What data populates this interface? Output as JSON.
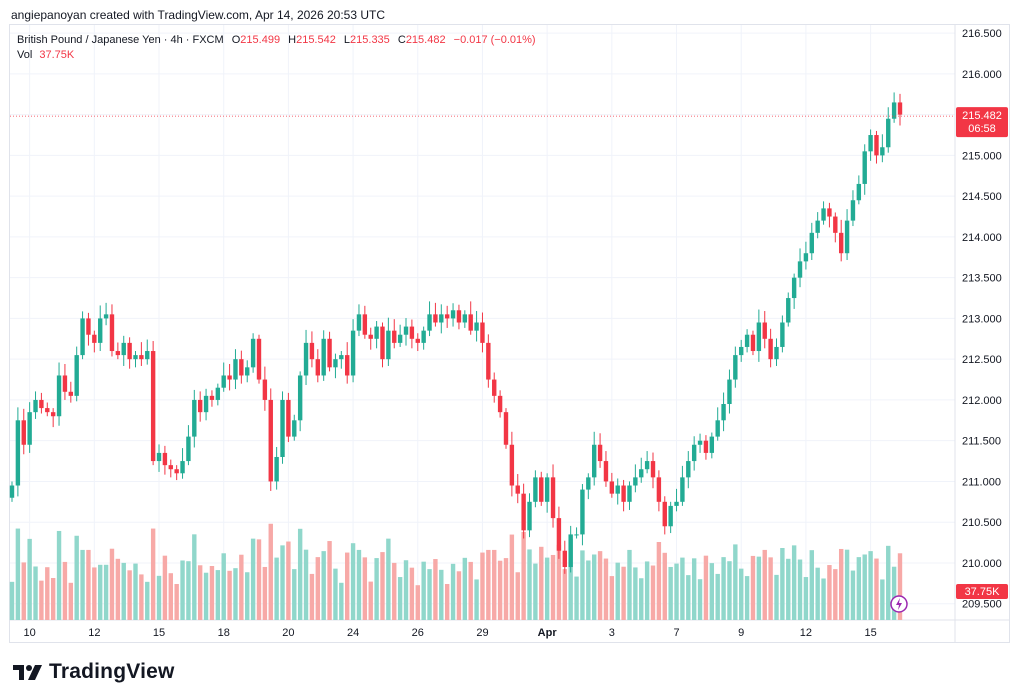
{
  "header": {
    "credit": "angiepanoyan created with TradingView.com, Apr 14, 2026 20:53 UTC"
  },
  "legend": {
    "symbol": "British Pound / Japanese Yen · 4h · FXCM",
    "open_label": "O",
    "open": "215.499",
    "high_label": "H",
    "high": "215.542",
    "low_label": "L",
    "low": "215.335",
    "close_label": "C",
    "close": "215.482",
    "change": "−0.017 (−0.01%)",
    "vol_label": "Vol",
    "vol": "37.75K"
  },
  "price_tag": {
    "price": "215.482",
    "countdown": "06:58"
  },
  "volume_tag": "37.75K",
  "brand": {
    "name": "TradingView"
  },
  "colors": {
    "up": "#22ab94",
    "down": "#f23645",
    "up_vol": "#90d7cb",
    "down_vol": "#f7a9a7",
    "grid": "#f0f3fa",
    "text": "#131722"
  },
  "chart_data": {
    "type": "candlestick",
    "title": "British Pound / Japanese Yen · 4h · FXCM",
    "y_ticks": [
      "216.500",
      "216.000",
      "215.500",
      "215.000",
      "214.500",
      "214.000",
      "213.500",
      "213.000",
      "212.500",
      "212.000",
      "211.500",
      "211.000",
      "210.500",
      "210.000",
      "209.500"
    ],
    "ylim": [
      209.3,
      216.6
    ],
    "x_ticks": [
      {
        "label": "10",
        "index": 3
      },
      {
        "label": "12",
        "index": 14
      },
      {
        "label": "15",
        "index": 25
      },
      {
        "label": "18",
        "index": 36
      },
      {
        "label": "20",
        "index": 47
      },
      {
        "label": "24",
        "index": 58
      },
      {
        "label": "26",
        "index": 69
      },
      {
        "label": "29",
        "index": 80
      },
      {
        "label": "Apr",
        "index": 91,
        "bold": true
      },
      {
        "label": "3",
        "index": 102
      },
      {
        "label": "7",
        "index": 113
      },
      {
        "label": "9",
        "index": 124
      },
      {
        "label": "12",
        "index": 135
      },
      {
        "label": "15",
        "index": 146
      }
    ],
    "closes": [
      210.95,
      211.75,
      211.45,
      211.85,
      212.0,
      211.9,
      211.85,
      211.8,
      212.3,
      212.1,
      212.05,
      212.55,
      213.0,
      212.8,
      212.7,
      213.0,
      213.05,
      212.6,
      212.55,
      212.7,
      212.5,
      212.55,
      212.5,
      212.6,
      211.25,
      211.35,
      211.2,
      211.15,
      211.1,
      211.25,
      211.55,
      212.0,
      211.85,
      212.05,
      212.0,
      212.15,
      212.3,
      212.25,
      212.5,
      212.3,
      212.4,
      212.75,
      212.25,
      212.0,
      211.0,
      211.3,
      212.0,
      211.55,
      211.75,
      212.3,
      212.7,
      212.5,
      212.3,
      212.75,
      212.4,
      212.5,
      212.55,
      212.3,
      212.85,
      213.05,
      212.8,
      212.75,
      212.9,
      212.5,
      212.85,
      212.7,
      212.8,
      212.9,
      212.75,
      212.7,
      212.85,
      213.05,
      212.95,
      213.05,
      213.0,
      213.1,
      212.95,
      213.05,
      212.85,
      212.95,
      212.7,
      212.25,
      212.05,
      211.85,
      211.45,
      210.95,
      210.85,
      210.4,
      210.75,
      211.05,
      210.75,
      211.05,
      210.55,
      210.15,
      209.95,
      210.35,
      210.35,
      210.9,
      211.05,
      211.45,
      211.25,
      211.0,
      210.85,
      210.95,
      210.75,
      210.95,
      211.05,
      211.15,
      211.25,
      211.05,
      210.75,
      210.45,
      210.7,
      210.75,
      211.05,
      211.25,
      211.45,
      211.5,
      211.35,
      211.55,
      211.75,
      211.95,
      212.25,
      212.55,
      212.65,
      212.8,
      212.6,
      212.95,
      212.75,
      212.5,
      212.65,
      212.95,
      213.25,
      213.5,
      213.7,
      213.8,
      214.05,
      214.2,
      214.35,
      214.25,
      214.05,
      213.8,
      214.2,
      214.45,
      214.65,
      215.05,
      215.25,
      215.0,
      215.1,
      215.45,
      215.65,
      215.5
    ]
  }
}
